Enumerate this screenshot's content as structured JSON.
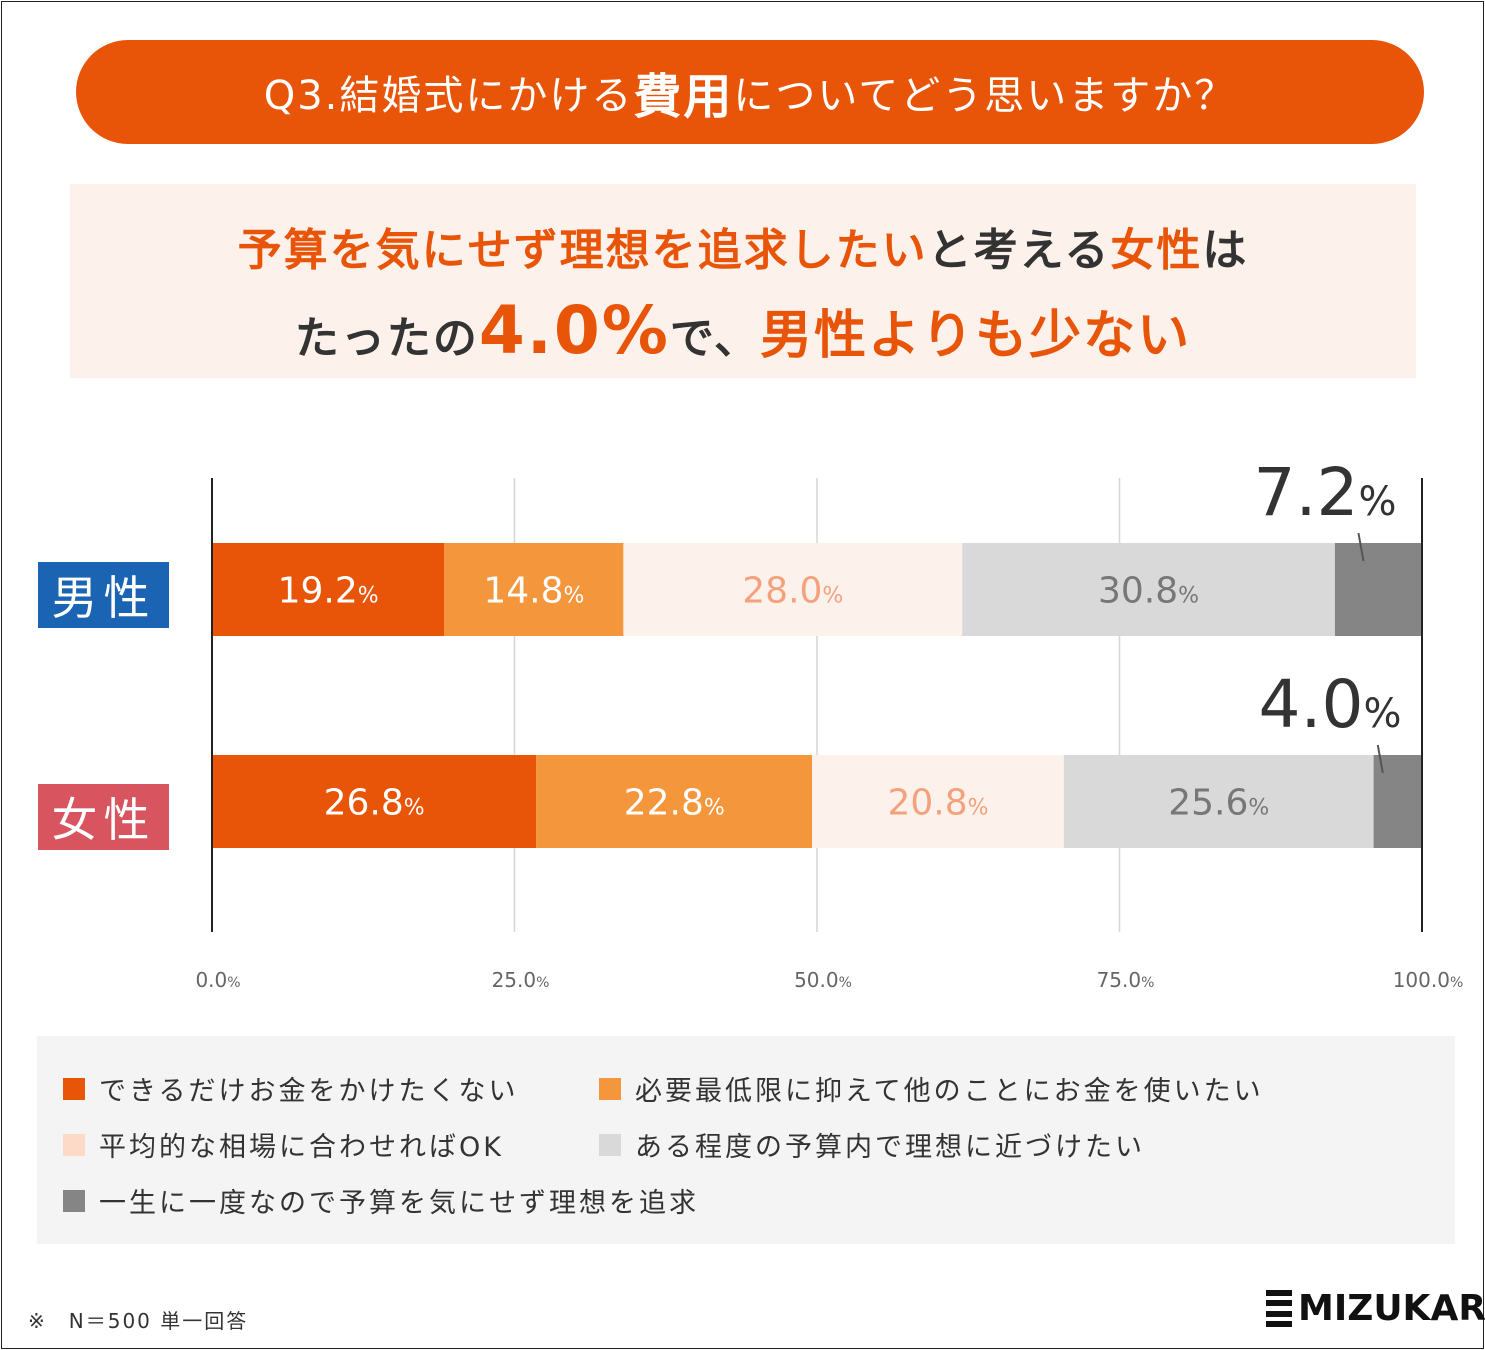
{
  "question": {
    "prefix": "Q3.結婚式にかける",
    "emph": "費用",
    "suffix": "についてどう思いますか？"
  },
  "headline": {
    "l1_a": "予算を気にせず理想を追求したい",
    "l1_b": "と考える",
    "l1_c": "女性",
    "l1_d": "は",
    "l2_a": "たったの",
    "l2_b": "4.0%",
    "l2_c": "で、",
    "l2_d": "男性よりも少ない"
  },
  "rows": {
    "male": "男性",
    "female": "女性"
  },
  "colors": {
    "accent": "#e85408",
    "male": "#1b64b3",
    "female": "#d8545f"
  },
  "chart_data": {
    "type": "bar",
    "stacked": true,
    "orientation": "horizontal",
    "categories": [
      "男性",
      "女性"
    ],
    "series": [
      {
        "name": "できるだけお金をかけたくない",
        "color": "#e85408",
        "label_color": "#ffffff",
        "values": [
          19.2,
          26.8
        ]
      },
      {
        "name": "必要最低限に抑えて他のことにお金を使いたい",
        "color": "#f4963c",
        "label_color": "#ffffff",
        "values": [
          14.8,
          22.8
        ]
      },
      {
        "name": "平均的な相場に合わせればOK",
        "color": "#fdf1eb",
        "label_color": "#f4a27e",
        "values": [
          28.0,
          20.8
        ]
      },
      {
        "name": "ある程度の予算内で理想に近づけたい",
        "color": "#d9d9d9",
        "label_color": "#777777",
        "values": [
          30.8,
          25.6
        ]
      },
      {
        "name": "一生に一度なので予算を気にせず理想を追求",
        "color": "#858585",
        "label_color": "#333333",
        "values": [
          7.2,
          4.0
        ]
      }
    ],
    "value_labels": [
      [
        "19.2",
        "14.8",
        "28.0",
        "30.8",
        "7.2"
      ],
      [
        "26.8",
        "22.8",
        "20.8",
        "25.6",
        "4.0"
      ]
    ],
    "percent_sign": "%",
    "xlim": [
      0,
      100
    ],
    "xticks": [
      "0.0",
      "25.0",
      "50.0",
      "75.0",
      "100.0"
    ],
    "grid": true,
    "legend_position": "bottom"
  },
  "legend_labels": [
    "できるだけお金をかけたくない",
    "必要最低限に抑えて他のことにお金を使いたい",
    "平均的な相場に合わせればOK",
    "ある程度の予算内で理想に近づけたい",
    "一生に一度なので予算を気にせず理想を追求"
  ],
  "footnote": "※　N＝500 単一回答",
  "logo": "MIZUKARA"
}
